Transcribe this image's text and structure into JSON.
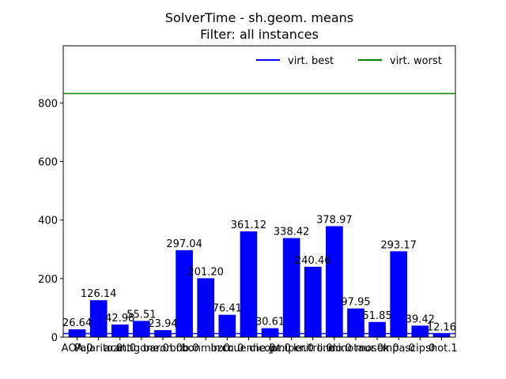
{
  "chart_data": {
    "type": "bar",
    "title": "SolverTime - sh.geom. means",
    "subtitle": "Filter: all instances",
    "xlabel": "",
    "ylabel": "",
    "ylim": [
      0,
      995
    ],
    "yticks": [
      0,
      200,
      400,
      600,
      800
    ],
    "categories": [
      "AOA.0",
      "Pajarito.0",
      "acat.0",
      "antigone.0",
      "baron.0",
      "bnb.0",
      "bonmin.0",
      "bzcc.0",
      "couenne.0",
      "dicopt.0",
      "juniper.0",
      "knitro.0",
      "lindo.0",
      "minotaur.0",
      "mosek.0",
      "mpa.0",
      "scip.0",
      "shot.1"
    ],
    "values": [
      26.64,
      126.14,
      42.98,
      55.51,
      23.94,
      297.04,
      201.2,
      76.41,
      361.12,
      30.61,
      338.42,
      240.46,
      378.97,
      97.95,
      51.85,
      293.17,
      39.42,
      12.16
    ],
    "value_labels": [
      "26.64",
      "126.14",
      "42.98",
      "55.51",
      "23.94",
      "297.04",
      "201.20",
      "76.41",
      "361.12",
      "30.61",
      "338.42",
      "240.46",
      "378.97",
      "97.95",
      "51.85",
      "293.17",
      "39.42",
      "12.16"
    ],
    "bar_color": "#0000ff",
    "reference_lines": [
      {
        "name": "virt. best",
        "value": 12.16,
        "color": "#0000ff"
      },
      {
        "name": "virt. worst",
        "value": 832,
        "color": "#008000"
      }
    ],
    "legend_placement": "top-right",
    "grid": false
  }
}
